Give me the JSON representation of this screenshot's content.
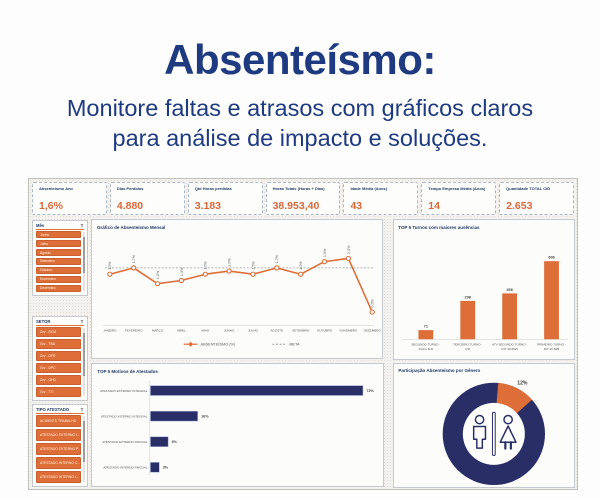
{
  "header": {
    "title": "Absenteísmo:",
    "subtitle1": "Monitore faltas e atrasos com gráficos claros",
    "subtitle2": "para análise de impacto e soluções."
  },
  "colors": {
    "navy_text": "#1e3a80",
    "accent_orange": "#dd6e38",
    "bar_navy": "#2a2e66",
    "meta_gray": "#9a9a9a"
  },
  "kpis": [
    {
      "label": "Absenteísmo Ano",
      "value": "1,6%"
    },
    {
      "label": "Dias Perdidos",
      "value": "4.880"
    },
    {
      "label": "Qtd Horas perdidas",
      "value": "3.183"
    },
    {
      "label": "Horas Totais (Horas + Dias)",
      "value": "38.953,40"
    },
    {
      "label": "Idade Média (Anos)",
      "value": "43"
    },
    {
      "label": "Tempo Empresa Média (Anos)",
      "value": "14"
    },
    {
      "label": "Quantidade TOTAL CID",
      "value": "2.653"
    }
  ],
  "slicers": [
    {
      "title": "Mês",
      "items": [
        "Junho",
        "Julho",
        "Agosto",
        "Setembro",
        "Outubro",
        "Novembro",
        "Dezembro"
      ]
    },
    {
      "title": "SETOR",
      "items": [
        "Grv - RCM",
        "Grv - TBU",
        "Grv - DFR",
        "Grv - DPC",
        "Grv - GHD",
        "Grv - TTI"
      ]
    },
    {
      "title": "TIPO ATESTADO",
      "items": [
        "ACIDENTE TRABALHO",
        "ATESTADO EXTERNO I...",
        "ATESTADO EXTERNO P...",
        "ATESTADO INTERNO C...",
        "ATESTADO INTERNO I..."
      ]
    }
  ],
  "chart_data": [
    {
      "type": "line",
      "title": "Gráfico de Absenteísmo Mensal",
      "categories": [
        "JANEIRO",
        "FEVEREIRO",
        "MARÇO",
        "ABRIL",
        "MAIO",
        "JUNHO",
        "JULHO",
        "AGOSTO",
        "SETEMBRO",
        "OUTUBRO",
        "NOVEMBRO",
        "DEZEMBRO"
      ],
      "series": [
        {
          "name": "ABSENTEÍSMO (%)",
          "values": [
            1.5,
            1.7,
            1.2,
            1.3,
            1.5,
            1.6,
            1.5,
            1.7,
            1.5,
            1.9,
            2.0,
            0.3
          ],
          "labels": [
            "1,5%",
            "1,7%",
            "1,2%",
            "1,3%",
            "1,5%",
            "1,6%",
            "1,5%",
            "1,7%",
            "1,5%",
            "1,9%",
            "2,0%",
            "0,3%"
          ]
        },
        {
          "name": "META",
          "value": 1.7,
          "style": "dashed"
        }
      ],
      "ylim": [
        0,
        2.2
      ],
      "legend_position": "bottom"
    },
    {
      "type": "bar",
      "title": "TOP 5 Turnos com maiores ausências",
      "categories": [
        "SEGUNDO TURNO -\nFOLG B-R",
        "TERCEIRO TURNO -\nDR",
        "ATV SEGUNDO TURNO -\nDIT 40 80W",
        "PRIMEIRO TURNO -\nDIT 40 80B"
      ],
      "values": [
        71,
        298,
        356,
        606
      ],
      "ylim": [
        0,
        650
      ]
    },
    {
      "type": "bar-horizontal",
      "title": "TOP 5 Motivos de Atestados",
      "categories": [
        "ATESTADO EXTERNO INTEGRAL",
        "ATESTADO INTERNO INTEGRAL",
        "ATESTADO EXTERNO PARCIAL",
        "ATESTADO INTERNO PARCIAL"
      ],
      "values": [
        72,
        16,
        6,
        3
      ],
      "labels": [
        "72%",
        "16%",
        "6%",
        "3%"
      ],
      "xlim": [
        0,
        80
      ]
    },
    {
      "type": "donut",
      "title": "Participação Absenteísmo por Gênero",
      "slices": [
        {
          "value": 88,
          "color": "#2a2e66",
          "label": ""
        },
        {
          "value": 12,
          "color": "#dd6e38",
          "label": "12%"
        }
      ],
      "center_icon": "male-female-restroom"
    }
  ]
}
